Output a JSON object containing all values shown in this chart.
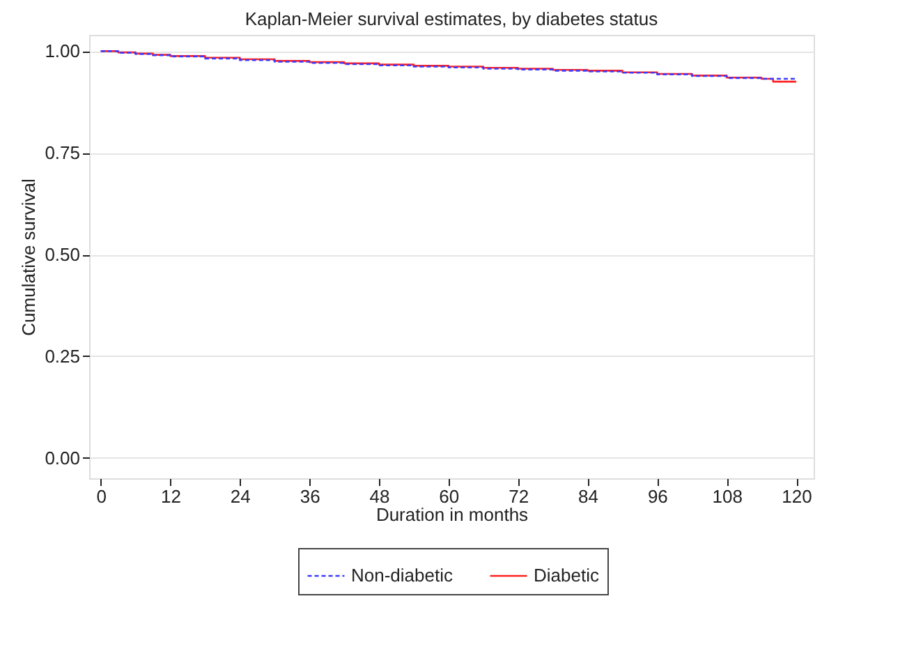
{
  "chart_data": {
    "type": "step",
    "title": "Kaplan-Meier survival estimates, by diabetes status",
    "xlabel": "Duration in months",
    "ylabel": "Cumulative survival",
    "series": [
      {
        "name": "Non-diabetic",
        "color": "#3b3bff",
        "line_style": "dashed",
        "x": [
          0,
          3,
          6,
          9,
          12,
          18,
          24,
          30,
          36,
          42,
          48,
          54,
          60,
          66,
          72,
          78,
          84,
          90,
          96,
          102,
          108,
          114,
          120
        ],
        "values": [
          1.0,
          0.996,
          0.993,
          0.99,
          0.987,
          0.982,
          0.978,
          0.974,
          0.971,
          0.968,
          0.965,
          0.962,
          0.96,
          0.957,
          0.955,
          0.952,
          0.95,
          0.947,
          0.943,
          0.939,
          0.934,
          0.932,
          0.929
        ]
      },
      {
        "name": "Diabetic",
        "color": "#ff2020",
        "line_style": "solid",
        "x": [
          0,
          3,
          6,
          9,
          12,
          18,
          24,
          30,
          36,
          42,
          48,
          54,
          60,
          66,
          72,
          78,
          84,
          90,
          96,
          102,
          108,
          114,
          116,
          120
        ],
        "values": [
          1.0,
          0.997,
          0.994,
          0.991,
          0.988,
          0.984,
          0.98,
          0.976,
          0.973,
          0.97,
          0.967,
          0.964,
          0.962,
          0.959,
          0.957,
          0.954,
          0.952,
          0.948,
          0.944,
          0.94,
          0.935,
          0.932,
          0.925,
          0.925
        ]
      }
    ],
    "xlim": [
      -2,
      123
    ],
    "xticks": [
      0,
      12,
      24,
      36,
      48,
      60,
      72,
      84,
      96,
      108,
      120
    ],
    "ylim": [
      -0.05,
      1.04
    ],
    "yticks": [
      {
        "value": 0,
        "label": "0.00"
      },
      {
        "value": 0.25,
        "label": "0.25"
      },
      {
        "value": 0.5,
        "label": "0.50"
      },
      {
        "value": 0.75,
        "label": "0.75"
      },
      {
        "value": 1,
        "label": "1.00"
      }
    ],
    "grid": "y",
    "legend": "bottom",
    "marker": "none"
  }
}
